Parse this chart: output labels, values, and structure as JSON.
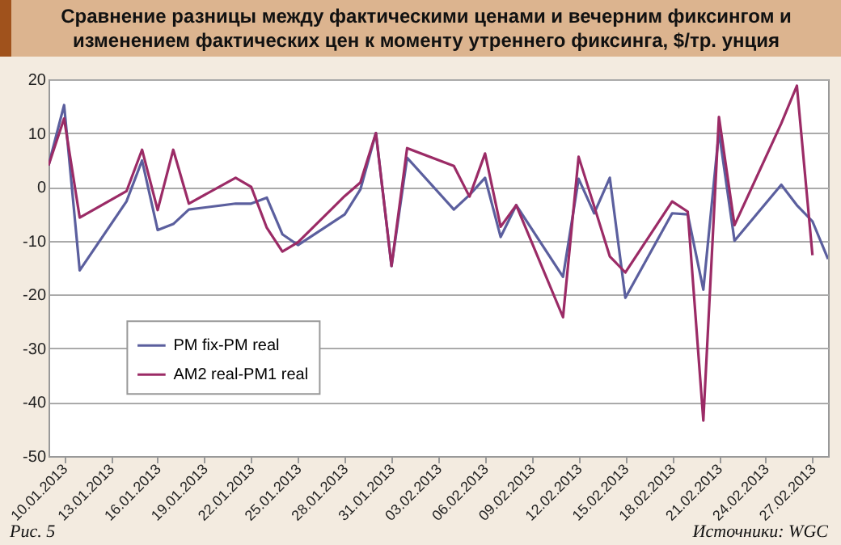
{
  "chart_data": {
    "type": "line",
    "title": "Сравнение разницы между фактическими ценами и вечерним фиксингом и изменением фактических цен к моменту утреннего фиксинга, $/тр. унция",
    "x": [
      "2013-01-09",
      "2013-01-10",
      "2013-01-11",
      "2013-01-14",
      "2013-01-15",
      "2013-01-16",
      "2013-01-17",
      "2013-01-18",
      "2013-01-21",
      "2013-01-22",
      "2013-01-23",
      "2013-01-24",
      "2013-01-25",
      "2013-01-28",
      "2013-01-29",
      "2013-01-30",
      "2013-01-31",
      "2013-02-01",
      "2013-02-04",
      "2013-02-05",
      "2013-02-06",
      "2013-02-07",
      "2013-02-08",
      "2013-02-11",
      "2013-02-12",
      "2013-02-13",
      "2013-02-14",
      "2013-02-15",
      "2013-02-18",
      "2013-02-19",
      "2013-02-20",
      "2013-02-21",
      "2013-02-22",
      "2013-02-25",
      "2013-02-26",
      "2013-02-27",
      "2013-02-28"
    ],
    "series": [
      {
        "name": "PM fix-PM real",
        "color": "#5b5f9e",
        "values": [
          4,
          15.2,
          -15.5,
          -2.7,
          4.9,
          -8,
          -6.9,
          -4.2,
          -3.1,
          -3.1,
          -2,
          -8.8,
          -10.8,
          -5.1,
          -0.5,
          10,
          -14.7,
          5.4,
          -4.2,
          -1.5,
          1.7,
          -9.3,
          -3.4,
          -16.7,
          1.5,
          -4.9,
          1.7,
          -20.6,
          -4.9,
          -5.1,
          -19.1,
          10.3,
          -10,
          0.4,
          -3.4,
          -6.4,
          -13.4
        ]
      },
      {
        "name": "AM2 real-PM1 real",
        "color": "#9b2b66",
        "values": [
          4,
          12.7,
          -5.7,
          -0.8,
          6.9,
          -4.3,
          6.9,
          -3.1,
          1.7,
          0,
          -7.6,
          -12,
          -10.3,
          -1.7,
          0.8,
          10,
          -14.7,
          7.2,
          3.9,
          -1.8,
          6.2,
          -7.4,
          -3.4,
          -24.2,
          5.6,
          -3.6,
          -12.9,
          -15.9,
          -2.7,
          -4.6,
          -43.4,
          13,
          -7.1,
          11.8,
          18.8,
          -12.7,
          null
        ]
      }
    ],
    "xlim": [
      "2013-01-09",
      "2013-02-28"
    ],
    "xticks": [
      {
        "value": "2013-01-10",
        "label": "10.01.2013"
      },
      {
        "value": "2013-01-13",
        "label": "13.01.2013"
      },
      {
        "value": "2013-01-16",
        "label": "16.01.2013"
      },
      {
        "value": "2013-01-19",
        "label": "19.01.2013"
      },
      {
        "value": "2013-01-22",
        "label": "22.01.2013"
      },
      {
        "value": "2013-01-25",
        "label": "25.01.2013"
      },
      {
        "value": "2013-01-28",
        "label": "28.01.2013"
      },
      {
        "value": "2013-01-31",
        "label": "31.01.2013"
      },
      {
        "value": "2013-02-03",
        "label": "03.02.2013"
      },
      {
        "value": "2013-02-06",
        "label": "06.02.2013"
      },
      {
        "value": "2013-02-09",
        "label": "09.02.2013"
      },
      {
        "value": "2013-02-12",
        "label": "12.02.2013"
      },
      {
        "value": "2013-02-15",
        "label": "15.02.2013"
      },
      {
        "value": "2013-02-18",
        "label": "18.02.2013"
      },
      {
        "value": "2013-02-21",
        "label": "21.02.2013"
      },
      {
        "value": "2013-02-24",
        "label": "24.02.2013"
      },
      {
        "value": "2013-02-27",
        "label": "27.02.2013"
      }
    ],
    "ylim": [
      -50,
      20
    ],
    "yticks": [
      -50,
      -40,
      -30,
      -20,
      -10,
      0,
      10,
      20
    ],
    "grid": "y",
    "legend": "left",
    "marker": "none",
    "line_style": "solid",
    "annotations": [
      "Рис. 5",
      "Источники: WGC"
    ]
  }
}
